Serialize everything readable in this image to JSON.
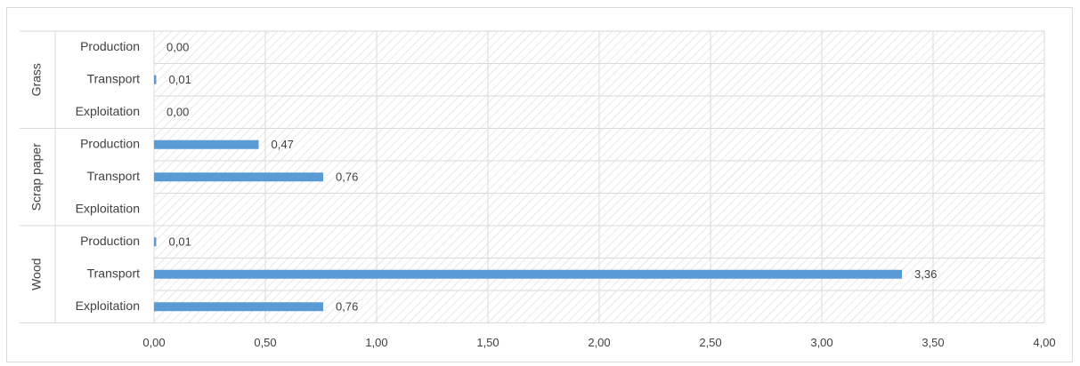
{
  "chart_data": {
    "type": "bar",
    "orientation": "horizontal",
    "groups": [
      {
        "name": "Grass",
        "categories": [
          "Production",
          "Transport",
          "Exploitation"
        ],
        "values": [
          0.0,
          0.01,
          0.0
        ],
        "labels": [
          "0,00",
          "0,01",
          "0,00"
        ]
      },
      {
        "name": "Scrap paper",
        "categories": [
          "Production",
          "Transport",
          "Exploitation"
        ],
        "values": [
          0.47,
          0.76,
          null
        ],
        "labels": [
          "0,47",
          "0,76",
          ""
        ]
      },
      {
        "name": "Wood",
        "categories": [
          "Production",
          "Transport",
          "Exploitation"
        ],
        "values": [
          0.01,
          3.36,
          0.76
        ],
        "labels": [
          "0,01",
          "3,36",
          "0,76"
        ]
      }
    ],
    "xlim": [
      0,
      4
    ],
    "xticks": [
      0,
      0.5,
      1,
      1.5,
      2,
      2.5,
      3,
      3.5,
      4
    ],
    "xtick_labels": [
      "0,00",
      "0,50",
      "1,00",
      "1,50",
      "2,00",
      "2,50",
      "3,00",
      "3,50",
      "4,00"
    ],
    "grid": true,
    "legend": "none",
    "title": "",
    "xlabel": "",
    "ylabel": "",
    "colors": {
      "bar": "#5b9bd5",
      "grid": "#d9d9d9",
      "hatch": "#d9d9d9",
      "text": "#404040"
    }
  }
}
